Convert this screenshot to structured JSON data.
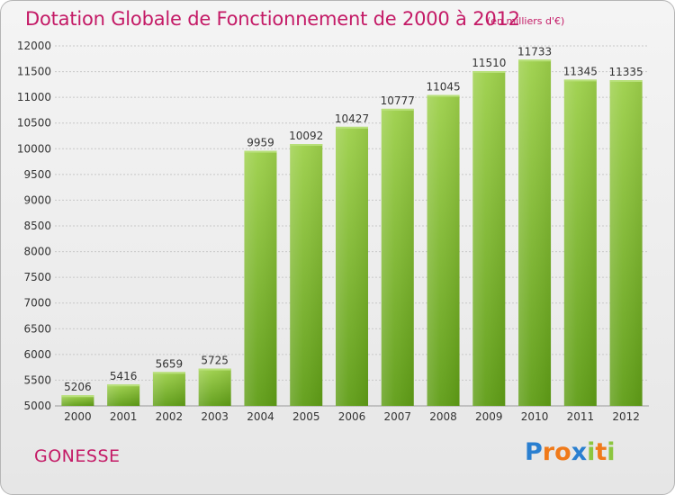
{
  "title": "Dotation Globale de Fonctionnement de 2000 à 2012",
  "subtitle": "(en milliers d'€)",
  "city": "GONESSE",
  "logo": {
    "letters": [
      "P",
      "r",
      "o",
      "x",
      "i",
      "t",
      "i"
    ],
    "colors": [
      "#2a7fd0",
      "#f07a1a",
      "#f07a1a",
      "#2a7fd0",
      "#8cc63f",
      "#f07a1a",
      "#8cc63f"
    ]
  },
  "colors": {
    "title": "#c41a66",
    "bar_top": "#9dd04a",
    "bar_bottom": "#5f9d16",
    "grid": "#c8c8c8"
  },
  "chart_data": {
    "type": "bar",
    "categories": [
      "2000",
      "2001",
      "2002",
      "2003",
      "2004",
      "2005",
      "2006",
      "2007",
      "2008",
      "2009",
      "2010",
      "2011",
      "2012"
    ],
    "values": [
      5206,
      5416,
      5659,
      5725,
      9959,
      10092,
      10427,
      10777,
      11045,
      11510,
      11733,
      11345,
      11335
    ],
    "ylim": [
      5000,
      12000
    ],
    "yticks": [
      5000,
      5500,
      6000,
      6500,
      7000,
      7500,
      8000,
      8500,
      9000,
      9500,
      10000,
      10500,
      11000,
      11500,
      12000
    ],
    "grid": true
  }
}
